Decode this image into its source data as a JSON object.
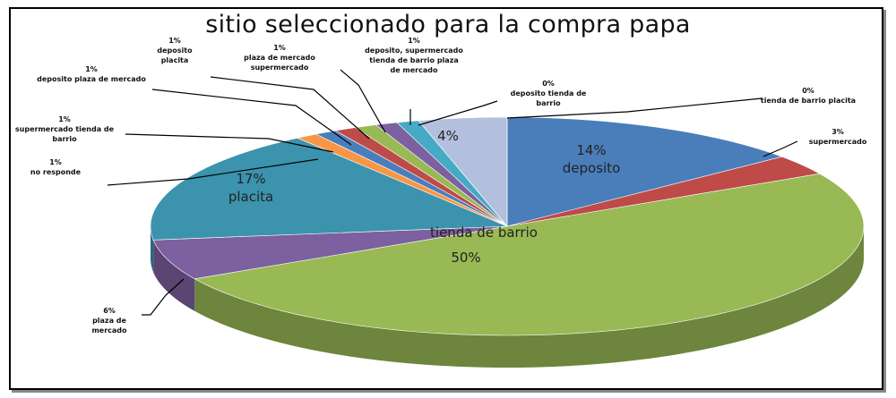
{
  "chart_data": {
    "type": "pie3d",
    "title": "sitio seleccionado para la compra papa",
    "categories": [
      "deposito",
      "supermercado",
      "tienda de barrio",
      "plaza de mercado",
      "placita",
      "no responde",
      "supermercado tienda de barrio",
      "deposito plaza de mercado",
      "deposito placita",
      "plaza de mercado supermercado",
      "deposito, supermercado tienda de barrio plaza de mercado",
      "deposito tienda de barrio",
      null,
      "tienda de barrio placita"
    ],
    "values": [
      14,
      3,
      50,
      6,
      17,
      1,
      1,
      1,
      1,
      1,
      1,
      0,
      4,
      0
    ],
    "value_labels": [
      "14%",
      "3%",
      "50%",
      "6%",
      "17%",
      "1%",
      "1%",
      "1%",
      "1%",
      "1%",
      "1%",
      "0%",
      "4%",
      "0%"
    ],
    "colors": [
      "#4A7EBB",
      "#BE4B48",
      "#98B954",
      "#7D60A0",
      "#3C93AD",
      "#F79646",
      "#4A7EBB",
      "#BE4B48",
      "#98B954",
      "#7D60A0",
      "#46AAC5",
      "#F79646",
      "#B3C0DD",
      "#E8B3B3"
    ]
  }
}
